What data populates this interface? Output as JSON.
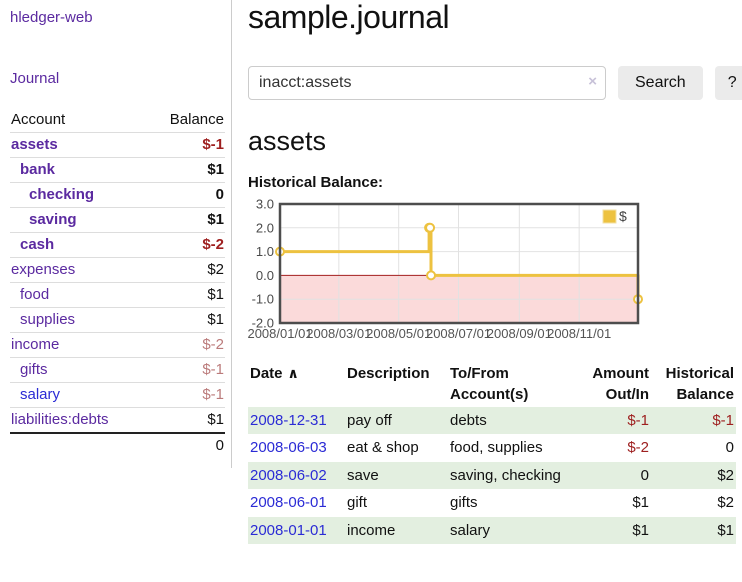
{
  "app": {
    "brand": "hledger-web",
    "nav_journal": "Journal"
  },
  "header": {
    "title": "sample.journal"
  },
  "search": {
    "value": "inacct:assets",
    "clear_icon": "×",
    "button_label": "Search",
    "help_label": "?"
  },
  "main": {
    "account_title": "assets",
    "chart_label": "Historical Balance:"
  },
  "sidebar": {
    "table_headers": {
      "account": "Account",
      "balance": "Balance"
    },
    "accounts": [
      {
        "name": "assets",
        "indent": 0,
        "bold": true,
        "name_color": "purple",
        "balance": "$-1",
        "balance_style": "neg-strong"
      },
      {
        "name": "bank",
        "indent": 1,
        "bold": true,
        "name_color": "purple",
        "balance": "$1",
        "balance_style": "plain"
      },
      {
        "name": "checking",
        "indent": 2,
        "bold": true,
        "name_color": "purple",
        "balance": "0",
        "balance_style": "plain"
      },
      {
        "name": "saving",
        "indent": 2,
        "bold": true,
        "name_color": "purple",
        "balance": "$1",
        "balance_style": "plain"
      },
      {
        "name": "cash",
        "indent": 1,
        "bold": true,
        "name_color": "purple",
        "balance": "$-2",
        "balance_style": "neg-strong"
      },
      {
        "name": "expenses",
        "indent": 0,
        "bold": false,
        "name_color": "purple",
        "balance": "$2",
        "balance_style": "plain"
      },
      {
        "name": "food",
        "indent": 1,
        "bold": false,
        "name_color": "purple",
        "balance": "$1",
        "balance_style": "plain"
      },
      {
        "name": "supplies",
        "indent": 1,
        "bold": false,
        "name_color": "purple",
        "balance": "$1",
        "balance_style": "plain"
      },
      {
        "name": "income",
        "indent": 0,
        "bold": false,
        "name_color": "purple",
        "balance": "$-2",
        "balance_style": "neg-muted"
      },
      {
        "name": "gifts",
        "indent": 1,
        "bold": false,
        "name_color": "purple",
        "balance": "$-1",
        "balance_style": "neg-muted"
      },
      {
        "name": "salary",
        "indent": 1,
        "bold": false,
        "name_color": "blue",
        "balance": "$-1",
        "balance_style": "neg-muted"
      },
      {
        "name": "liabilities:debts",
        "indent": 0,
        "bold": false,
        "name_color": "purple",
        "balance": "$1",
        "balance_style": "plain"
      }
    ],
    "total": "0"
  },
  "chart_data": {
    "type": "line",
    "step": true,
    "title": "Historical Balance:",
    "series": [
      {
        "name": "$",
        "color": "#EDC240",
        "points": [
          [
            "2008-01-01",
            1
          ],
          [
            "2008-06-01",
            2
          ],
          [
            "2008-06-02",
            2
          ],
          [
            "2008-06-03",
            0
          ],
          [
            "2008-12-31",
            -1
          ]
        ]
      }
    ],
    "ylim": [
      -2,
      3
    ],
    "yticks": [
      "3.0",
      "2.0",
      "1.0",
      "0.0",
      "-1.0",
      "-2.0"
    ],
    "xticks": [
      "2008/01/01",
      "2008/03/01",
      "2008/05/01",
      "2008/07/01",
      "2008/09/01",
      "2008/11/01"
    ],
    "legend_position": "top-right",
    "grid": true,
    "negative_region_color": "#fbdada",
    "zero_line_color": "#a31f1f",
    "marker": "open-circle"
  },
  "register": {
    "sort_icon": "∧",
    "headers": [
      {
        "lines": [
          "Date"
        ],
        "align": "left",
        "sortable": true
      },
      {
        "lines": [
          "Description"
        ],
        "align": "left"
      },
      {
        "lines": [
          "To/From",
          "Account(s)"
        ],
        "align": "left"
      },
      {
        "lines": [
          "Amount",
          "Out/In"
        ],
        "align": "right"
      },
      {
        "lines": [
          "Historical",
          "Balance"
        ],
        "align": "right"
      }
    ],
    "rows": [
      {
        "date": "2008-12-31",
        "description": "pay off",
        "accounts": "debts",
        "amount": "$-1",
        "balance": "$-1"
      },
      {
        "date": "2008-06-03",
        "description": "eat & shop",
        "accounts": "food, supplies",
        "amount": "$-2",
        "balance": "0"
      },
      {
        "date": "2008-06-02",
        "description": "save",
        "accounts": "saving, checking",
        "amount": "0",
        "balance": "$2"
      },
      {
        "date": "2008-06-01",
        "description": "gift",
        "accounts": "gifts",
        "amount": "$1",
        "balance": "$2"
      },
      {
        "date": "2008-01-01",
        "description": "income",
        "accounts": "salary",
        "amount": "$1",
        "balance": "$1"
      }
    ]
  },
  "colors": {
    "link_purple": "#5b2aa0",
    "link_blue": "#2b2bd5",
    "negative": "#9e2020",
    "negative_muted": "#bb7b7b",
    "row_green": "#e3efe0",
    "chart_line": "#EDC240",
    "chart_negative_bg": "#fbdada",
    "chart_zero_line": "#a31f1f"
  }
}
